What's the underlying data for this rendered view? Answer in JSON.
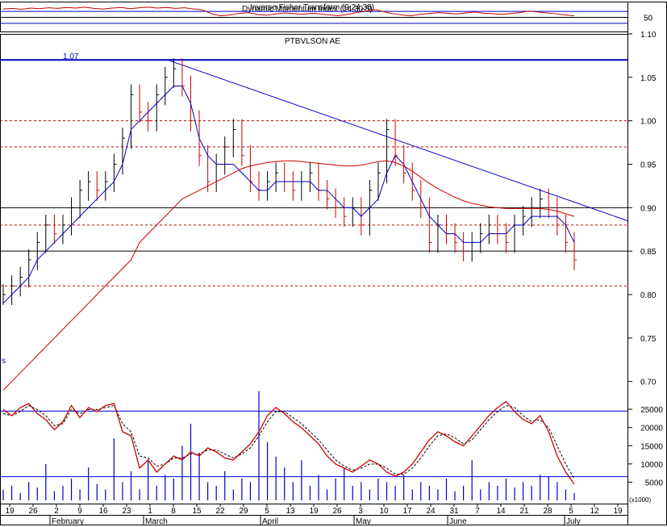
{
  "colors": {
    "background": "#ffffff",
    "grid": "#000000",
    "price": "#000000",
    "price_down": "#cc0000",
    "ma_fast": "#0000cc",
    "ma_slow": "#cc0000",
    "trendline": "#0000cc",
    "hline_blue": "#0000cc",
    "dashed_red": "#cc0000",
    "volume": "#0000cc",
    "stoch_k": "#cc0000",
    "stoch_d": "#000000"
  },
  "chart_data": [
    {
      "type": "line",
      "panel": "indicator-top",
      "title": "Dynamic Momentum Index (14,30,5)",
      "title2": "Inverse Fisher Transform (9,24,38)",
      "ylim": [
        0,
        100
      ],
      "y_ticks": [
        50
      ],
      "reference_lines": [
        70,
        50,
        30
      ],
      "series": [
        {
          "values": [
            78,
            80,
            77,
            81,
            79,
            82,
            80,
            83,
            81,
            84,
            80,
            78,
            81,
            83,
            79,
            82,
            84,
            81,
            83,
            80,
            82,
            78,
            75,
            62,
            55,
            58,
            63,
            66,
            60,
            57,
            61,
            65,
            63,
            60,
            64,
            61,
            58,
            55,
            60,
            66,
            71,
            76,
            69,
            62,
            58,
            55,
            60,
            63,
            66,
            64,
            61,
            65,
            68,
            64,
            62,
            60,
            63,
            66,
            71,
            68,
            65,
            62,
            58,
            55
          ]
        }
      ]
    },
    {
      "type": "line",
      "panel": "price",
      "title": "PTBVLSON AE",
      "annotations": [
        "1.07",
        "s"
      ],
      "ylim": [
        0.67,
        1.1
      ],
      "y_ticks": [
        "0.70",
        "0.75",
        "0.80",
        "0.85",
        "0.90",
        "0.95",
        "1.00",
        "1.05",
        "1.10"
      ],
      "x_tick_labels": [
        "19",
        "26",
        "2",
        "9",
        "16",
        "23",
        "1",
        "8",
        "15",
        "22",
        "29",
        "5",
        "13",
        "19",
        "26",
        "3",
        "10",
        "17",
        "24",
        "31",
        "7",
        "14",
        "21",
        "28",
        "5",
        "12",
        "19"
      ],
      "x_month_labels": [
        "February",
        "March",
        "April",
        "May",
        "June",
        "July"
      ],
      "horizontal_lines": [
        1.07,
        0.9,
        0.85
      ],
      "dashed_lines": [
        1.0,
        0.97,
        0.88,
        0.81
      ],
      "trendline": {
        "from": [
          1.07
        ],
        "to": [
          0.885
        ]
      },
      "series": [
        {
          "name": "close",
          "values": [
            0.8,
            0.81,
            0.82,
            0.84,
            0.86,
            0.88,
            0.87,
            0.88,
            0.9,
            0.92,
            0.93,
            0.92,
            0.93,
            0.95,
            0.98,
            1.03,
            1.01,
            1.0,
            1.03,
            1.05,
            1.06,
            1.04,
            1.0,
            0.96,
            0.93,
            0.95,
            0.97,
            0.99,
            0.96,
            0.93,
            0.92,
            0.93,
            0.94,
            0.93,
            0.92,
            0.93,
            0.94,
            0.92,
            0.91,
            0.9,
            0.89,
            0.9,
            0.88,
            0.92,
            0.94,
            0.99,
            0.96,
            0.94,
            0.92,
            0.9,
            0.86,
            0.88,
            0.87,
            0.86,
            0.85,
            0.86,
            0.87,
            0.88,
            0.87,
            0.86,
            0.88,
            0.89,
            0.9,
            0.91,
            0.9,
            0.88,
            0.86,
            0.84
          ]
        },
        {
          "name": "ma_fast",
          "values": [
            0.79,
            0.8,
            0.81,
            0.82,
            0.84,
            0.85,
            0.86,
            0.87,
            0.88,
            0.89,
            0.9,
            0.91,
            0.92,
            0.93,
            0.95,
            0.99,
            1.0,
            1.01,
            1.02,
            1.03,
            1.04,
            1.04,
            1.02,
            0.98,
            0.96,
            0.95,
            0.95,
            0.95,
            0.94,
            0.93,
            0.92,
            0.92,
            0.93,
            0.93,
            0.93,
            0.93,
            0.93,
            0.92,
            0.92,
            0.91,
            0.9,
            0.9,
            0.89,
            0.9,
            0.91,
            0.94,
            0.96,
            0.95,
            0.93,
            0.91,
            0.89,
            0.88,
            0.87,
            0.87,
            0.86,
            0.86,
            0.86,
            0.87,
            0.87,
            0.87,
            0.88,
            0.88,
            0.89,
            0.89,
            0.89,
            0.89,
            0.88,
            0.86
          ]
        },
        {
          "name": "ma_slow",
          "values": [
            0.69,
            0.7,
            0.71,
            0.72,
            0.73,
            0.74,
            0.75,
            0.76,
            0.77,
            0.78,
            0.79,
            0.8,
            0.81,
            0.82,
            0.83,
            0.84,
            0.86,
            0.87,
            0.88,
            0.89,
            0.9,
            0.91,
            0.915,
            0.92,
            0.925,
            0.93,
            0.935,
            0.94,
            0.945,
            0.948,
            0.95,
            0.952,
            0.953,
            0.954,
            0.954,
            0.953,
            0.952,
            0.951,
            0.95,
            0.949,
            0.948,
            0.948,
            0.949,
            0.951,
            0.953,
            0.954,
            0.952,
            0.948,
            0.942,
            0.935,
            0.928,
            0.922,
            0.917,
            0.912,
            0.908,
            0.905,
            0.903,
            0.901,
            0.9,
            0.899,
            0.899,
            0.899,
            0.899,
            0.899,
            0.898,
            0.896,
            0.893,
            0.89
          ]
        }
      ]
    },
    {
      "type": "bar",
      "panel": "volume",
      "y_ticks": [
        "5000",
        "10000",
        "15000",
        "20000",
        "25000"
      ],
      "y_unit": "(x1000)",
      "ylim": [
        0,
        31000
      ],
      "reference_lines": [
        24500,
        6500
      ],
      "values": [
        3000,
        4000,
        2000,
        5000,
        3500,
        10000,
        2500,
        4000,
        6000,
        3000,
        9000,
        4500,
        3000,
        17000,
        5000,
        8000,
        3000,
        11000,
        4000,
        7000,
        6000,
        15000,
        21000,
        13000,
        5000,
        4000,
        8000,
        3000,
        6000,
        5000,
        30000,
        16000,
        12000,
        9000,
        5000,
        11000,
        4000,
        7000,
        3000,
        6000,
        9000,
        4000,
        5000,
        3000,
        6000,
        5000,
        4000,
        7000,
        3000,
        5000,
        4000,
        3000,
        6000,
        2500,
        4000,
        11000,
        3000,
        5000,
        4000,
        6000,
        3500,
        5000,
        4000,
        7000,
        6500,
        5000,
        3000,
        2000
      ],
      "series": [
        {
          "values": [
            43,
            40,
            44,
            46,
            41,
            38,
            33,
            37,
            45,
            39,
            44,
            42,
            45,
            46,
            32,
            30,
            14,
            18,
            12,
            16,
            20,
            18,
            22,
            20,
            24,
            22,
            19,
            18,
            22,
            26,
            32,
            40,
            44,
            41,
            37,
            34,
            30,
            26,
            20,
            16,
            14,
            12,
            15,
            18,
            16,
            12,
            10,
            12,
            16,
            22,
            28,
            32,
            30,
            27,
            25,
            30,
            35,
            40,
            44,
            47,
            42,
            38,
            36,
            40,
            32,
            20,
            12,
            6
          ]
        },
        {
          "values": [
            41,
            40,
            42,
            45,
            43,
            40,
            35,
            36,
            43,
            41,
            43,
            43,
            44,
            45,
            36,
            32,
            20,
            19,
            15,
            16,
            19,
            19,
            21,
            21,
            23,
            23,
            21,
            19,
            21,
            24,
            30,
            37,
            42,
            42,
            39,
            36,
            32,
            28,
            23,
            18,
            15,
            13,
            14,
            16,
            16,
            14,
            11,
            11,
            14,
            19,
            25,
            30,
            31,
            29,
            26,
            28,
            33,
            38,
            42,
            45,
            44,
            40,
            37,
            38,
            34,
            25,
            16,
            9
          ]
        }
      ]
    }
  ]
}
